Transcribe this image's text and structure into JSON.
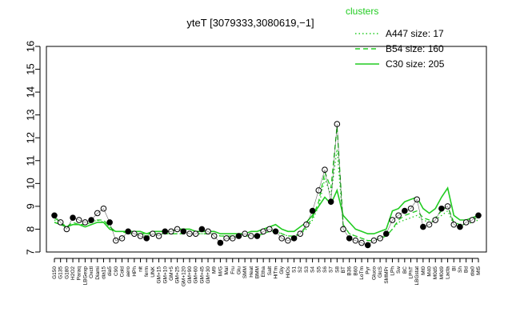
{
  "chart_data": {
    "type": "line",
    "title": "yteT [3079333,3080619,−1]",
    "xlabel": "",
    "ylabel": "",
    "ylim": [
      7,
      16
    ],
    "yticks": [
      7,
      8,
      9,
      10,
      11,
      12,
      13,
      14,
      15,
      16
    ],
    "grid": false,
    "legend": {
      "title": "clusters",
      "placement": "top-right",
      "color": "#22cc22",
      "entries": [
        {
          "label": "A447 size: 17",
          "style": "dotted"
        },
        {
          "label": "B54 size: 160",
          "style": "dashed"
        },
        {
          "label": "C30 size: 205",
          "style": "solid"
        }
      ]
    },
    "x_tick_labels": [
      "G150",
      "G135",
      "G180",
      "H2O2",
      "Paraq",
      "LBGexp",
      "Oxctl",
      "Diami",
      "dia15",
      "dia5",
      "C90",
      "Cold",
      "aero",
      "HPh",
      "nit",
      "ferm",
      "UNK",
      "GM+15",
      "GM+10",
      "GM+5",
      "GM+25",
      "GM+120",
      "GM+90",
      "GM+60",
      "GM+45",
      "GM+30",
      "M9",
      "M/G",
      "Mal",
      "Fru",
      "Glu",
      "SMM",
      "Heat",
      "BMM",
      "Etha",
      "Salt",
      "HiTm",
      "Gly",
      "HiOs",
      "S1",
      "S2",
      "S3",
      "S4",
      "S5",
      "S6",
      "S7",
      "S8",
      "BT",
      "B36",
      "B60",
      "LoTm",
      "Pyr",
      "Gluco",
      "GlcS",
      "SMMPr",
      "LPh",
      "Sw",
      "BC",
      "LPhT",
      "LBGstat",
      "Mt0",
      "M40",
      "M0d5",
      "M0d9",
      "Lacta",
      "Bl",
      "Sh",
      "Bd",
      "dia0",
      "Mt5"
    ],
    "series": [
      {
        "name": "A447 size: 17",
        "style": "dotted",
        "values": [
          8.4,
          8.3,
          8.1,
          8.2,
          8.2,
          8.2,
          8.3,
          8.4,
          8.3,
          8.1,
          7.9,
          7.9,
          7.8,
          7.8,
          7.8,
          7.7,
          7.8,
          7.8,
          7.8,
          7.8,
          7.8,
          7.8,
          7.8,
          7.8,
          7.8,
          7.8,
          7.8,
          7.7,
          7.7,
          7.7,
          7.7,
          7.7,
          7.7,
          7.7,
          7.8,
          7.9,
          7.9,
          7.8,
          7.7,
          7.7,
          7.8,
          8.0,
          8.4,
          9.0,
          10.2,
          9.5,
          11.5,
          8.2,
          7.8,
          7.7,
          7.6,
          7.5,
          7.5,
          7.6,
          7.7,
          8.0,
          8.3,
          8.4,
          8.5,
          8.6,
          8.4,
          8.3,
          8.4,
          8.6,
          8.8,
          8.2,
          8.2,
          8.2,
          8.3,
          8.4
        ]
      },
      {
        "name": "B54 size: 160",
        "style": "dashed",
        "values": [
          8.5,
          8.3,
          8.1,
          8.3,
          8.2,
          8.2,
          8.3,
          8.4,
          8.4,
          8.1,
          7.9,
          7.9,
          7.8,
          7.8,
          7.8,
          7.8,
          7.8,
          7.8,
          7.8,
          7.8,
          7.8,
          7.8,
          7.8,
          7.8,
          7.8,
          7.8,
          7.8,
          7.7,
          7.7,
          7.7,
          7.7,
          7.7,
          7.7,
          7.7,
          7.8,
          7.9,
          8.0,
          7.8,
          7.7,
          7.7,
          7.8,
          8.1,
          8.5,
          9.2,
          10.5,
          9.8,
          12.5,
          8.2,
          7.8,
          7.7,
          7.6,
          7.5,
          7.5,
          7.6,
          7.7,
          8.0,
          8.4,
          8.6,
          8.7,
          8.8,
          8.5,
          8.4,
          8.5,
          8.8,
          9.0,
          8.3,
          8.2,
          8.3,
          8.4,
          8.5
        ]
      },
      {
        "name": "C30 size: 205",
        "style": "solid",
        "values": [
          8.3,
          8.2,
          8.1,
          8.2,
          8.2,
          8.1,
          8.2,
          8.3,
          8.3,
          8.0,
          7.9,
          7.9,
          7.9,
          7.9,
          7.9,
          7.8,
          7.9,
          7.9,
          7.9,
          7.9,
          8.0,
          8.0,
          8.0,
          7.9,
          7.9,
          7.9,
          7.9,
          7.8,
          7.8,
          7.8,
          7.8,
          7.8,
          7.9,
          7.9,
          8.0,
          8.1,
          8.2,
          8.0,
          7.9,
          7.9,
          8.1,
          8.3,
          8.6,
          9.0,
          9.4,
          9.1,
          9.7,
          8.6,
          8.3,
          8.0,
          7.9,
          7.8,
          7.8,
          7.9,
          8.0,
          8.8,
          8.9,
          9.2,
          9.3,
          9.4,
          8.9,
          8.7,
          8.9,
          9.4,
          9.8,
          8.6,
          8.4,
          8.4,
          8.5,
          8.6
        ]
      },
      {
        "name": "",
        "style": "points",
        "values": [
          8.6,
          8.3,
          8.0,
          8.5,
          8.4,
          8.3,
          8.4,
          8.7,
          8.9,
          8.3,
          7.5,
          7.6,
          7.9,
          7.8,
          7.7,
          7.6,
          7.8,
          7.7,
          7.9,
          7.9,
          8.0,
          7.9,
          7.8,
          7.8,
          8.0,
          7.9,
          7.7,
          7.4,
          7.6,
          7.6,
          7.7,
          7.8,
          7.7,
          7.7,
          7.9,
          8.0,
          7.9,
          7.6,
          7.5,
          7.6,
          7.8,
          8.2,
          8.8,
          9.7,
          10.6,
          9.2,
          12.6,
          8.0,
          7.6,
          7.5,
          7.4,
          7.3,
          7.5,
          7.6,
          7.8,
          8.4,
          8.6,
          8.8,
          8.9,
          9.3,
          8.1,
          8.2,
          8.4,
          8.9,
          9.0,
          8.2,
          8.1,
          8.3,
          8.4,
          8.6
        ]
      }
    ]
  }
}
